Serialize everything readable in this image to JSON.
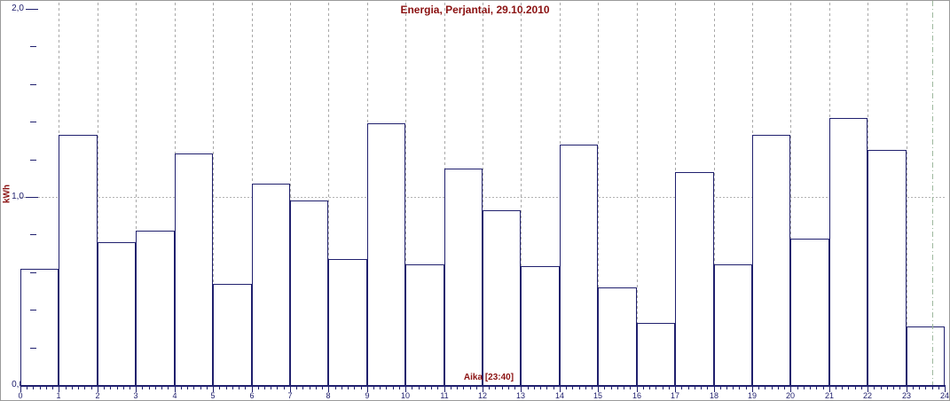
{
  "title": "Energia, Perjantai, 29.10.2010",
  "colors": {
    "bar_border": "#20206e",
    "bar_fill": "#ffffff",
    "axis_text": "#20206e",
    "heading_text": "#8b1212",
    "vgrid": "#a8a8a8",
    "hgrid": "#b2b2b2",
    "cursor_green": "#9db89d",
    "window_border": "#9a9a9a"
  },
  "y_axis": {
    "label": "kWh",
    "major_labels": [
      "2,0",
      "1,0",
      "0,0"
    ],
    "major_values": [
      2.0,
      1.0,
      0.0
    ],
    "minor_values": [
      1.8,
      1.6,
      1.4,
      1.2,
      0.8,
      0.6,
      0.4,
      0.2
    ],
    "min": 0.0,
    "max": 2.0
  },
  "x_axis": {
    "label": "Aika [23:40]",
    "tick_labels": [
      "0",
      "1",
      "2",
      "3",
      "4",
      "5",
      "6",
      "7",
      "8",
      "9",
      "10",
      "11",
      "12",
      "13",
      "14",
      "15",
      "16",
      "17",
      "18",
      "19",
      "20",
      "21",
      "22",
      "23",
      "24"
    ],
    "minor_ticks_per_hour": 5,
    "min": 0,
    "max": 24
  },
  "cursor": {
    "time": "23:40",
    "hour_value": 23.667
  },
  "chart_data": {
    "type": "bar",
    "title": "Energia, Perjantai, 29.10.2010",
    "xlabel": "Aika [23:40]",
    "ylabel": "kWh",
    "categories": [
      0,
      1,
      2,
      3,
      4,
      5,
      6,
      7,
      8,
      9,
      10,
      11,
      12,
      13,
      14,
      15,
      16,
      17,
      18,
      19,
      20,
      21,
      22,
      23
    ],
    "values": [
      0.62,
      1.33,
      0.76,
      0.82,
      1.23,
      0.54,
      1.07,
      0.98,
      0.67,
      1.39,
      0.64,
      1.15,
      0.93,
      0.63,
      1.28,
      0.52,
      0.33,
      1.13,
      0.64,
      1.33,
      0.78,
      1.42,
      1.25,
      0.31
    ],
    "ylim": [
      0.0,
      2.0
    ],
    "xlim": [
      0,
      24
    ],
    "grid": {
      "vertical": "dashed gray at every hour",
      "horizontal": "dotted gray at 1.0 kWh"
    },
    "legend": "none",
    "annotations": [
      "green dash-dot time cursor at 23:40"
    ]
  }
}
